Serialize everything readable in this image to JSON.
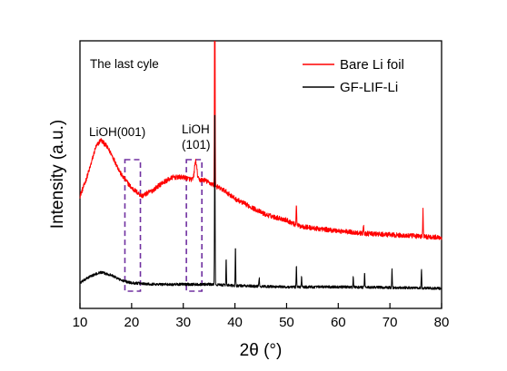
{
  "chart_data": {
    "type": "line",
    "title": "",
    "xlabel": "2θ (°)",
    "ylabel": "Intensity (a.u.)",
    "xlim": [
      10,
      80
    ],
    "x_ticks": [
      10,
      20,
      30,
      40,
      50,
      60,
      70,
      80
    ],
    "y_ticks_shown": false,
    "grid": false,
    "legend_position": "top-right",
    "annotations": {
      "panel_label": "The last cyle",
      "lioh_001": "LiOH(001)",
      "lioh_101_line1": "LiOH",
      "lioh_101_line2": "(101)"
    },
    "highlight_regions": [
      {
        "x_range": [
          18.7,
          21.7
        ],
        "label": "LiOH(001)",
        "color": "#7030a0"
      },
      {
        "x_range": [
          30.6,
          33.6
        ],
        "label": "LiOH (101)",
        "color": "#7030a0"
      }
    ],
    "series": [
      {
        "name": "Bare Li foil",
        "color": "#ff0000",
        "baseline": [
          [
            10,
            0.42
          ],
          [
            11,
            0.47
          ],
          [
            12,
            0.53
          ],
          [
            13,
            0.6
          ],
          [
            14,
            0.63
          ],
          [
            15,
            0.61
          ],
          [
            16,
            0.58
          ],
          [
            17,
            0.54
          ],
          [
            18,
            0.5
          ],
          [
            20,
            0.45
          ],
          [
            22,
            0.42
          ],
          [
            24,
            0.44
          ],
          [
            26,
            0.47
          ],
          [
            28,
            0.49
          ],
          [
            30,
            0.49
          ],
          [
            32,
            0.48
          ],
          [
            34,
            0.48
          ],
          [
            36,
            0.46
          ],
          [
            38,
            0.44
          ],
          [
            40,
            0.41
          ],
          [
            42,
            0.39
          ],
          [
            44,
            0.37
          ],
          [
            46,
            0.35
          ],
          [
            48,
            0.34
          ],
          [
            50,
            0.33
          ],
          [
            52,
            0.31
          ],
          [
            55,
            0.3
          ],
          [
            60,
            0.29
          ],
          [
            65,
            0.28
          ],
          [
            70,
            0.275
          ],
          [
            75,
            0.27
          ],
          [
            80,
            0.265
          ]
        ],
        "peaks": [
          {
            "x": 32.4,
            "height": 0.07,
            "width": 0.45
          },
          {
            "x": 36.1,
            "height": 1.25,
            "width": 0.1
          },
          {
            "x": 51.9,
            "height": 0.08,
            "width": 0.12
          },
          {
            "x": 64.9,
            "height": 0.03,
            "width": 0.12
          },
          {
            "x": 76.4,
            "height": 0.1,
            "width": 0.1
          }
        ]
      },
      {
        "name": "GF-LIF-Li",
        "color": "#000000",
        "baseline": [
          [
            10,
            0.095
          ],
          [
            12,
            0.12
          ],
          [
            14,
            0.135
          ],
          [
            16,
            0.125
          ],
          [
            18,
            0.105
          ],
          [
            20,
            0.095
          ],
          [
            25,
            0.09
          ],
          [
            30,
            0.09
          ],
          [
            35,
            0.09
          ],
          [
            40,
            0.085
          ],
          [
            50,
            0.08
          ],
          [
            60,
            0.08
          ],
          [
            70,
            0.078
          ],
          [
            80,
            0.075
          ]
        ],
        "peaks": [
          {
            "x": 36.1,
            "height": 0.68,
            "width": 0.1
          },
          {
            "x": 38.3,
            "height": 0.1,
            "width": 0.1
          },
          {
            "x": 40.1,
            "height": 0.15,
            "width": 0.1
          },
          {
            "x": 44.7,
            "height": 0.03,
            "width": 0.12
          },
          {
            "x": 51.9,
            "height": 0.08,
            "width": 0.1
          },
          {
            "x": 52.9,
            "height": 0.04,
            "width": 0.1
          },
          {
            "x": 62.9,
            "height": 0.04,
            "width": 0.1
          },
          {
            "x": 65.1,
            "height": 0.06,
            "width": 0.1
          },
          {
            "x": 70.4,
            "height": 0.07,
            "width": 0.1
          },
          {
            "x": 76.1,
            "height": 0.07,
            "width": 0.1
          }
        ]
      }
    ]
  }
}
